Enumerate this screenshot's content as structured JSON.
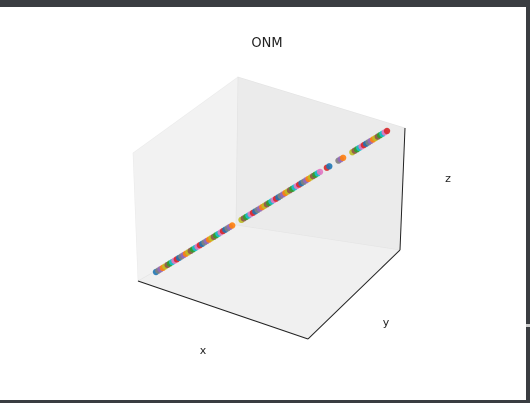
{
  "chart_data": {
    "type": "scatter",
    "title": "ONM",
    "xlabel": "x",
    "ylabel": "y",
    "zlabel": "z",
    "grid": false,
    "tick_labels": false,
    "point_colors": [
      "#1f77b4",
      "#ff7f0e",
      "#2ca02c",
      "#d62728",
      "#9467bd",
      "#8c564b",
      "#e377c2",
      "#7f7f7f",
      "#bcbd22",
      "#17becf"
    ],
    "points": [
      [
        -1.0,
        -1.0,
        -1.0
      ],
      [
        -0.98,
        -0.98,
        -0.98
      ],
      [
        -0.96,
        -0.96,
        -0.96
      ],
      [
        -0.94,
        -0.94,
        -0.94
      ],
      [
        -0.92,
        -0.92,
        -0.92
      ],
      [
        -0.9,
        -0.9,
        -0.9
      ],
      [
        -0.88,
        -0.88,
        -0.88
      ],
      [
        -0.86,
        -0.86,
        -0.86
      ],
      [
        -0.84,
        -0.84,
        -0.84
      ],
      [
        -0.82,
        -0.82,
        -0.82
      ],
      [
        -0.8,
        -0.8,
        -0.8
      ],
      [
        -0.78,
        -0.78,
        -0.78
      ],
      [
        -0.76,
        -0.76,
        -0.76
      ],
      [
        -0.74,
        -0.74,
        -0.74
      ],
      [
        -0.72,
        -0.72,
        -0.72
      ],
      [
        -0.7,
        -0.7,
        -0.7
      ],
      [
        -0.68,
        -0.68,
        -0.68
      ],
      [
        -0.66,
        -0.66,
        -0.66
      ],
      [
        -0.64,
        -0.64,
        -0.64
      ],
      [
        -0.62,
        -0.62,
        -0.62
      ],
      [
        -0.6,
        -0.6,
        -0.6
      ],
      [
        -0.58,
        -0.58,
        -0.58
      ],
      [
        -0.56,
        -0.56,
        -0.56
      ],
      [
        -0.54,
        -0.54,
        -0.54
      ],
      [
        -0.52,
        -0.52,
        -0.52
      ],
      [
        -0.5,
        -0.5,
        -0.5
      ],
      [
        -0.48,
        -0.48,
        -0.48
      ],
      [
        -0.46,
        -0.46,
        -0.46
      ],
      [
        -0.44,
        -0.44,
        -0.44
      ],
      [
        -0.42,
        -0.42,
        -0.42
      ],
      [
        -0.4,
        -0.4,
        -0.4
      ],
      [
        -0.38,
        -0.38,
        -0.38
      ],
      [
        -0.36,
        -0.36,
        -0.36
      ],
      [
        -0.34,
        -0.34,
        -0.34
      ],
      [
        -0.26,
        -0.26,
        -0.26
      ],
      [
        -0.24,
        -0.24,
        -0.24
      ],
      [
        -0.22,
        -0.22,
        -0.22
      ],
      [
        -0.2,
        -0.2,
        -0.2
      ],
      [
        -0.18,
        -0.18,
        -0.18
      ],
      [
        -0.16,
        -0.16,
        -0.16
      ],
      [
        -0.14,
        -0.14,
        -0.14
      ],
      [
        -0.12,
        -0.12,
        -0.12
      ],
      [
        -0.1,
        -0.1,
        -0.1
      ],
      [
        -0.08,
        -0.08,
        -0.08
      ],
      [
        -0.06,
        -0.06,
        -0.06
      ],
      [
        -0.04,
        -0.04,
        -0.04
      ],
      [
        -0.02,
        -0.02,
        -0.02
      ],
      [
        0.0,
        0.0,
        0.0
      ],
      [
        0.02,
        0.02,
        0.02
      ],
      [
        0.04,
        0.04,
        0.04
      ],
      [
        0.06,
        0.06,
        0.06
      ],
      [
        0.08,
        0.08,
        0.08
      ],
      [
        0.1,
        0.1,
        0.1
      ],
      [
        0.12,
        0.12,
        0.12
      ],
      [
        0.14,
        0.14,
        0.14
      ],
      [
        0.16,
        0.16,
        0.16
      ],
      [
        0.18,
        0.18,
        0.18
      ],
      [
        0.2,
        0.2,
        0.2
      ],
      [
        0.22,
        0.22,
        0.22
      ],
      [
        0.24,
        0.24,
        0.24
      ],
      [
        0.26,
        0.26,
        0.26
      ],
      [
        0.28,
        0.28,
        0.28
      ],
      [
        0.3,
        0.3,
        0.3
      ],
      [
        0.32,
        0.32,
        0.32
      ],
      [
        0.34,
        0.34,
        0.34
      ],
      [
        0.36,
        0.36,
        0.36
      ],
      [
        0.38,
        0.38,
        0.38
      ],
      [
        0.4,
        0.4,
        0.4
      ],
      [
        0.42,
        0.42,
        0.42
      ],
      [
        0.48,
        0.48,
        0.48
      ],
      [
        0.5,
        0.5,
        0.5
      ],
      [
        0.58,
        0.58,
        0.58
      ],
      [
        0.6,
        0.6,
        0.6
      ],
      [
        0.62,
        0.62,
        0.62
      ],
      [
        0.7,
        0.7,
        0.7
      ],
      [
        0.72,
        0.72,
        0.72
      ],
      [
        0.74,
        0.74,
        0.74
      ],
      [
        0.76,
        0.76,
        0.76
      ],
      [
        0.78,
        0.78,
        0.78
      ],
      [
        0.8,
        0.8,
        0.8
      ],
      [
        0.82,
        0.82,
        0.82
      ],
      [
        0.84,
        0.84,
        0.84
      ],
      [
        0.86,
        0.86,
        0.86
      ],
      [
        0.88,
        0.88,
        0.88
      ],
      [
        0.9,
        0.9,
        0.9
      ],
      [
        0.92,
        0.92,
        0.92
      ],
      [
        0.94,
        0.94,
        0.94
      ],
      [
        0.96,
        0.96,
        0.96
      ],
      [
        0.98,
        0.98,
        0.98
      ],
      [
        1.0,
        1.0,
        1.0
      ]
    ]
  }
}
